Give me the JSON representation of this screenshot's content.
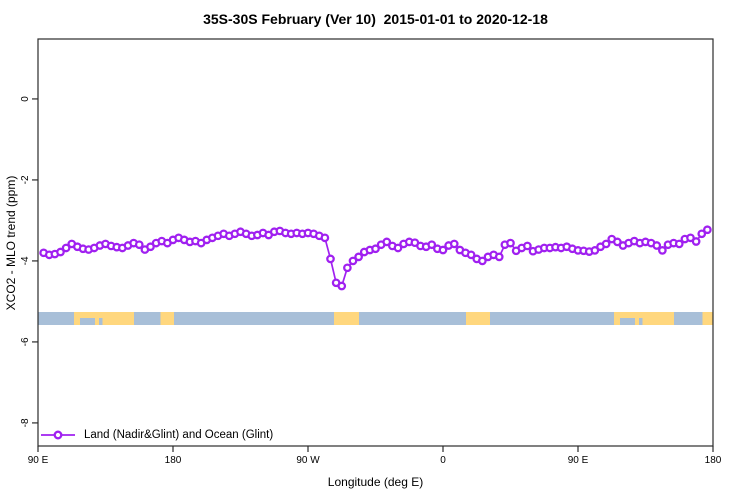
{
  "title": "35S-30S February (Ver 10)  2015-01-01 to 2020-12-18",
  "x_axis": {
    "label": "Longitude (deg E)",
    "ticks": [
      {
        "value": 90,
        "label": "90 E"
      },
      {
        "value": 180,
        "label": "180"
      },
      {
        "value": 270,
        "label": "90 W"
      },
      {
        "value": 360,
        "label": "0"
      },
      {
        "value": 450,
        "label": "90 E"
      },
      {
        "value": 540,
        "label": "180"
      }
    ]
  },
  "y_axis": {
    "label": "XCO2 - MLO trend (ppm)",
    "ticks": [
      {
        "value": 0,
        "label": "0"
      },
      {
        "value": -2,
        "label": "-2"
      },
      {
        "value": -4,
        "label": "-4"
      },
      {
        "value": -6,
        "label": "-6"
      },
      {
        "value": -8,
        "label": "-8"
      }
    ]
  },
  "legend": {
    "items": [
      {
        "label": "Land (Nadir&Glint) and Ocean (Glint)",
        "color": "#A020F0",
        "marker": "open-circle"
      }
    ]
  },
  "colors": {
    "series_purple": "#A020F0",
    "ocean_blue": "#A8BFD8",
    "land_yellow": "#FFD77E",
    "axis_black": "#2b2b2b"
  },
  "chart_data": {
    "type": "line",
    "title": "35S-30S February (Ver 10)  2015-01-01 to 2020-12-18",
    "xlabel": "Longitude (deg E)",
    "ylabel": "XCO2 - MLO trend (ppm)",
    "xlim": [
      90,
      540
    ],
    "ylim": [
      -8.57,
      1.48
    ],
    "grid": false,
    "legend_position": "bottom-left-inside",
    "x": [
      93.75,
      97.5,
      101.25,
      105,
      108.75,
      112.5,
      116.25,
      120,
      123.75,
      127.5,
      131.25,
      135,
      138.75,
      142.5,
      146.25,
      150,
      153.75,
      157.5,
      161.25,
      165,
      168.75,
      172.5,
      176.25,
      180,
      183.75,
      187.5,
      191.25,
      195,
      198.75,
      202.5,
      206.25,
      210,
      213.75,
      217.5,
      221.25,
      225,
      228.75,
      232.5,
      236.25,
      240,
      243.75,
      247.5,
      251.25,
      255,
      258.75,
      262.5,
      266.25,
      270,
      273.75,
      277.5,
      281.25,
      285,
      288.75,
      292.5,
      296.25,
      300,
      303.75,
      307.5,
      311.25,
      315,
      318.75,
      322.5,
      326.25,
      330,
      333.75,
      337.5,
      341.25,
      345,
      348.75,
      352.5,
      356.25,
      360,
      363.75,
      367.5,
      371.25,
      375,
      378.75,
      382.5,
      386.25,
      390,
      393.75,
      397.5,
      401.25,
      405,
      408.75,
      412.5,
      416.25,
      420,
      423.75,
      427.5,
      431.25,
      435,
      438.75,
      442.5,
      446.25,
      450,
      453.75,
      457.5,
      461.25,
      465,
      468.75,
      472.5,
      476.25,
      480,
      483.75,
      487.5,
      491.25,
      495,
      498.75,
      502.5,
      506.25,
      510,
      513.75,
      517.5,
      521.25,
      525,
      528.75,
      532.5,
      536.25
    ],
    "series": [
      {
        "name": "Land (Nadir&Glint) and Ocean (Glint)",
        "color": "#A020F0",
        "marker": "open-circle",
        "values": [
          -3.8,
          -3.85,
          -3.83,
          -3.78,
          -3.68,
          -3.58,
          -3.65,
          -3.7,
          -3.72,
          -3.68,
          -3.62,
          -3.58,
          -3.63,
          -3.66,
          -3.68,
          -3.62,
          -3.56,
          -3.6,
          -3.72,
          -3.65,
          -3.56,
          -3.51,
          -3.56,
          -3.48,
          -3.43,
          -3.48,
          -3.53,
          -3.51,
          -3.56,
          -3.48,
          -3.43,
          -3.38,
          -3.33,
          -3.38,
          -3.33,
          -3.28,
          -3.33,
          -3.38,
          -3.36,
          -3.31,
          -3.36,
          -3.28,
          -3.26,
          -3.31,
          -3.33,
          -3.31,
          -3.33,
          -3.31,
          -3.33,
          -3.38,
          -3.43,
          -3.95,
          -4.54,
          -4.62,
          -4.17,
          -4.0,
          -3.9,
          -3.78,
          -3.73,
          -3.7,
          -3.6,
          -3.53,
          -3.63,
          -3.68,
          -3.58,
          -3.53,
          -3.55,
          -3.63,
          -3.65,
          -3.6,
          -3.7,
          -3.73,
          -3.62,
          -3.58,
          -3.73,
          -3.8,
          -3.85,
          -3.95,
          -4.0,
          -3.9,
          -3.85,
          -3.9,
          -3.6,
          -3.56,
          -3.75,
          -3.68,
          -3.63,
          -3.76,
          -3.72,
          -3.68,
          -3.68,
          -3.66,
          -3.68,
          -3.65,
          -3.7,
          -3.74,
          -3.75,
          -3.77,
          -3.74,
          -3.65,
          -3.58,
          -3.46,
          -3.53,
          -3.62,
          -3.56,
          -3.51,
          -3.56,
          -3.53,
          -3.56,
          -3.62,
          -3.74,
          -3.6,
          -3.56,
          -3.58,
          -3.46,
          -3.43,
          -3.52,
          -3.33,
          -3.23
        ]
      }
    ],
    "land_ocean_strip": {
      "description": "horizontal land/ocean mask strip across all longitudes",
      "y_top_ppm": -5.26,
      "y_bottom_ppm": -5.58,
      "ocean_color": "#A8BFD8",
      "land_color": "#FFD77E",
      "land_segments_lon": [
        [
          114,
          154
        ],
        [
          171.5,
          180.5
        ],
        [
          287.3,
          304
        ],
        [
          375.3,
          391.3
        ],
        [
          474,
          514
        ],
        [
          533,
          540
        ]
      ],
      "coast_notches_lon": [
        [
          118,
          128
        ],
        [
          130.5,
          133
        ],
        [
          478,
          488
        ],
        [
          490.5,
          493
        ]
      ]
    }
  }
}
